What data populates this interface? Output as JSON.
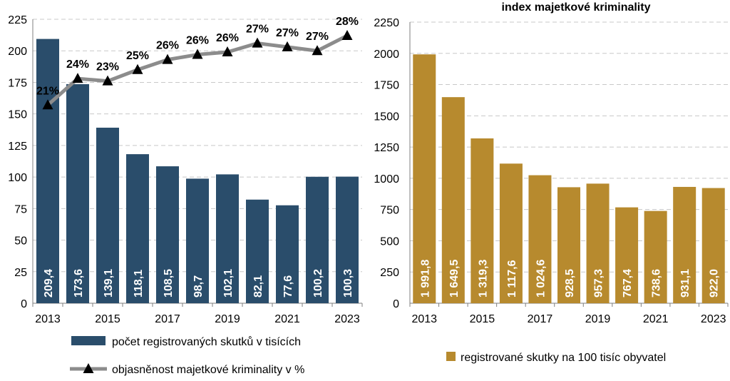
{
  "chart_data": [
    {
      "type": "bar",
      "title": "",
      "categories": [
        "2013",
        "2014",
        "2015",
        "2016",
        "2017",
        "2018",
        "2019",
        "2020",
        "2021",
        "2022",
        "2023"
      ],
      "x_tick_labels": [
        "2013",
        "",
        "2015",
        "",
        "2017",
        "",
        "2019",
        "",
        "2021",
        "",
        "2023"
      ],
      "ylim": [
        0,
        225
      ],
      "y_ticks": [
        0,
        25,
        50,
        75,
        100,
        125,
        150,
        175,
        200,
        225
      ],
      "y_tick_labels": [
        "0",
        "25",
        "50",
        "75",
        "100",
        "125",
        "150",
        "175",
        "200",
        "225"
      ],
      "grid": true,
      "legend_position": "bottom",
      "series": [
        {
          "name": "počet registrovaných skutků v tisících",
          "type": "bar",
          "color": "#2a4d6b",
          "values": [
            209.4,
            173.6,
            139.1,
            118.1,
            108.5,
            98.7,
            102.1,
            82.1,
            77.6,
            100.2,
            100.3
          ],
          "labels": [
            "209,4",
            "173,6",
            "139,1",
            "118,1",
            "108,5",
            "98,7",
            "102,1",
            "82,1",
            "77,6",
            "100,2",
            "100,3"
          ]
        },
        {
          "name": "objasněnost majetkové kriminality v %",
          "type": "line",
          "color": "#8c8c8c",
          "marker_color": "#000000",
          "values": [
            21,
            24,
            23,
            25,
            26,
            26,
            26,
            27,
            27,
            27,
            28
          ],
          "plot_values": [
            157,
            178,
            176,
            185,
            193,
            197,
            199,
            206,
            203,
            200,
            212
          ],
          "labels": [
            "21%",
            "24%",
            "23%",
            "25%",
            "26%",
            "26%",
            "26%",
            "27%",
            "27%",
            "27%",
            "28%"
          ]
        }
      ]
    },
    {
      "type": "bar",
      "title": "index majetkové kriminality",
      "categories": [
        "2013",
        "2014",
        "2015",
        "2016",
        "2017",
        "2018",
        "2019",
        "2020",
        "2021",
        "2022",
        "2023"
      ],
      "x_tick_labels": [
        "2013",
        "",
        "2015",
        "",
        "2017",
        "",
        "2019",
        "",
        "2021",
        "",
        "2023"
      ],
      "ylim": [
        0,
        2250
      ],
      "y_ticks": [
        0,
        250,
        500,
        750,
        1000,
        1250,
        1500,
        1750,
        2000,
        2250
      ],
      "y_tick_labels": [
        "0",
        "250",
        "500",
        "750",
        "1000",
        "1250",
        "1500",
        "1750",
        "2000",
        "2250"
      ],
      "grid": true,
      "legend_position": "bottom",
      "series": [
        {
          "name": "registrované skutky na 100 tisíc obyvatel",
          "type": "bar",
          "color": "#b78a2e",
          "values": [
            1991.8,
            1649.5,
            1319.3,
            1117.6,
            1024.6,
            928.5,
            957.3,
            767.4,
            738.6,
            931.1,
            922.0
          ],
          "labels": [
            "1 991,8",
            "1 649,5",
            "1 319,3",
            "1 117,6",
            "1 024,6",
            "928,5",
            "957,3",
            "767,4",
            "738,6",
            "931,1",
            "922,0"
          ]
        }
      ]
    }
  ]
}
